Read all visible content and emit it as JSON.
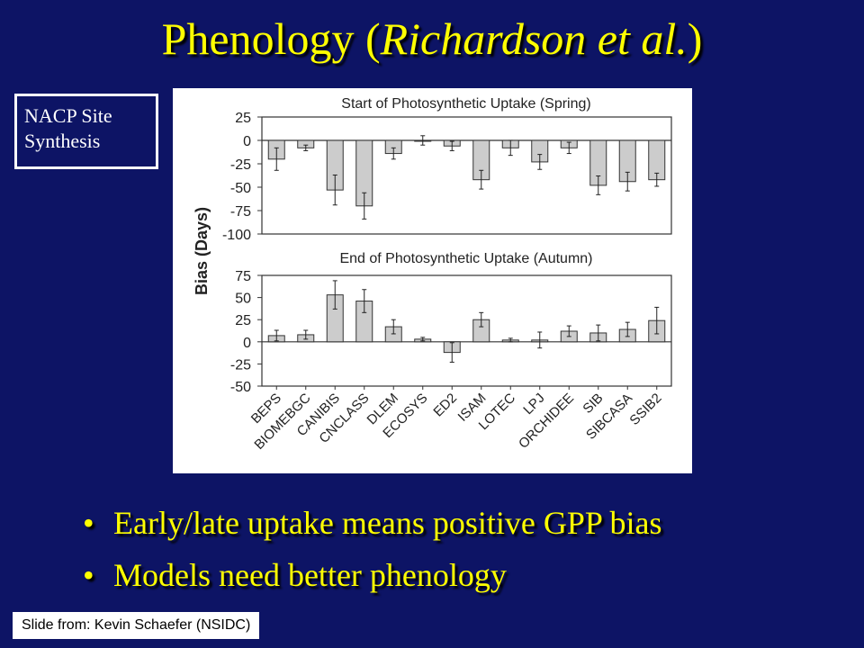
{
  "slide": {
    "title_main": "Phenology (",
    "title_italic": "Richardson et al.",
    "title_close": ")",
    "badge_line1": "NACP Site",
    "badge_line2": "Synthesis",
    "bullets": [
      "Early/late uptake means positive GPP bias",
      "Models need better phenology"
    ],
    "bullet_glyph": "•",
    "credit": "Slide from: Kevin Schaefer (NSIDC)",
    "colors": {
      "background": "#0d1465",
      "title": "#ffff00",
      "bar": "#cccccc"
    }
  },
  "chart_data": [
    {
      "type": "bar",
      "title": "Start of Photosynthetic Uptake (Spring)",
      "ylabel": "Bias (Days)",
      "ylim": [
        -100,
        25
      ],
      "yticks": [
        "25",
        "0",
        "-25",
        "-50",
        "-75",
        "-100"
      ],
      "categories": [
        "BEPS",
        "BIOMEBGC",
        "CANIBIS",
        "CNCLASS",
        "DLEM",
        "ECOSYS",
        "ED2",
        "ISAM",
        "LOTEC",
        "LPJ",
        "ORCHIDEE",
        "SIB",
        "SIBCASA",
        "SSIB2"
      ],
      "values": [
        -20,
        -8,
        -53,
        -70,
        -14,
        0,
        -6,
        -42,
        -8,
        -23,
        -8,
        -48,
        -44,
        -42
      ],
      "errors": [
        12,
        3,
        16,
        14,
        6,
        5,
        5,
        10,
        8,
        8,
        6,
        10,
        10,
        7
      ]
    },
    {
      "type": "bar",
      "title": "End of Photosynthetic Uptake (Autumn)",
      "ylabel": "Bias (Days)",
      "ylim": [
        -50,
        75
      ],
      "yticks": [
        "75",
        "50",
        "25",
        "0",
        "-25",
        "-50"
      ],
      "categories": [
        "BEPS",
        "BIOMEBGC",
        "CANIBIS",
        "CNCLASS",
        "DLEM",
        "ECOSYS",
        "ED2",
        "ISAM",
        "LOTEC",
        "LPJ",
        "ORCHIDEE",
        "SIB",
        "SIBCASA",
        "SSIB2"
      ],
      "values": [
        7,
        8,
        53,
        46,
        17,
        3,
        -12,
        25,
        2,
        2,
        12,
        10,
        14,
        24
      ],
      "errors": [
        6,
        5,
        16,
        13,
        8,
        2,
        11,
        8,
        2,
        9,
        6,
        9,
        8,
        15
      ]
    }
  ]
}
